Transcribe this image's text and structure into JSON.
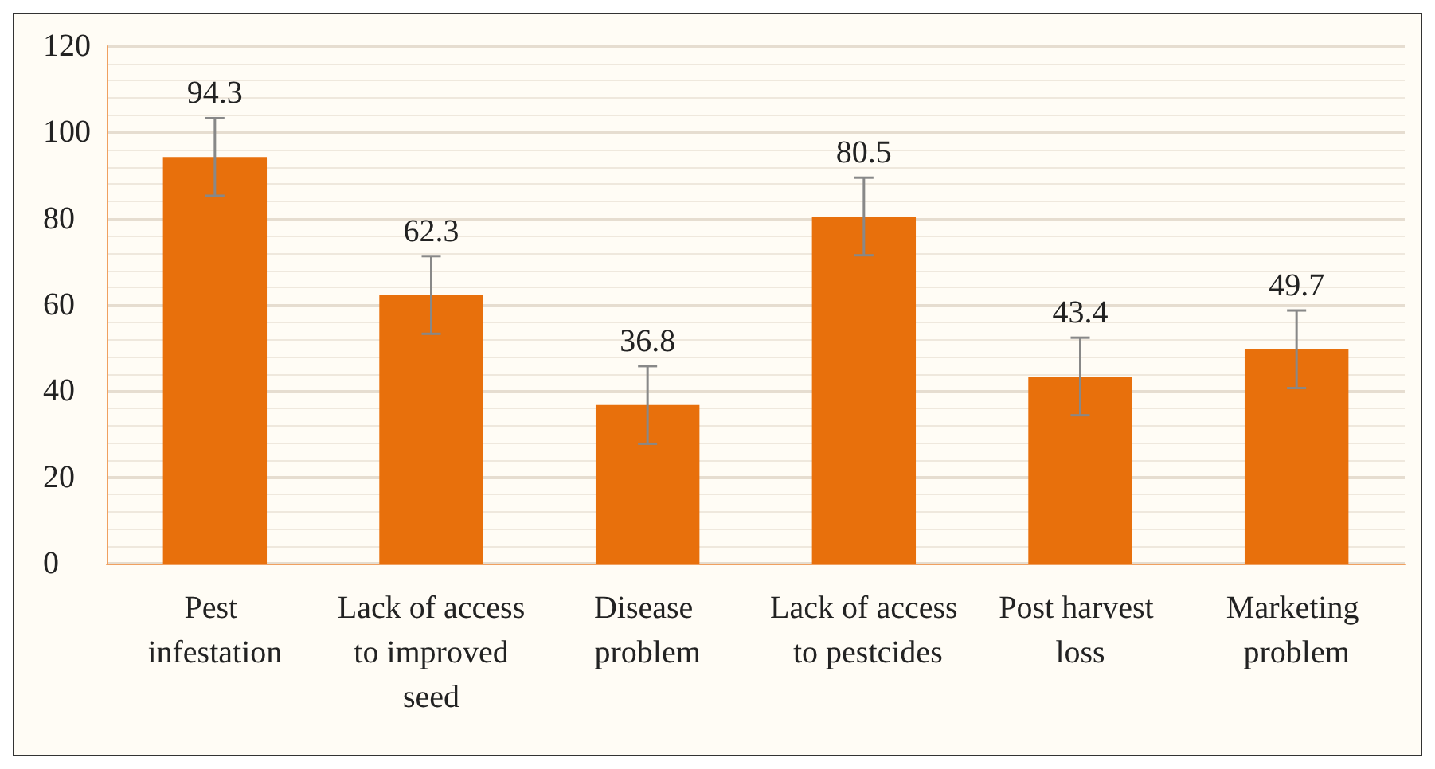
{
  "chart_data": {
    "type": "bar",
    "categories": [
      "Pest infestation",
      "Lack of access to improved seed",
      "Disease problem",
      "Lack of access to pestcides",
      "Post harvest loss",
      "Marketing problem"
    ],
    "values": [
      94.3,
      62.3,
      36.8,
      80.5,
      43.4,
      49.7
    ],
    "errors": [
      9,
      9,
      9,
      9,
      9,
      9
    ],
    "color": "#e8700c",
    "data_labels": true,
    "grid": true,
    "ylim": [
      0,
      120
    ],
    "yticks": [
      0,
      20,
      40,
      60,
      80,
      100,
      120
    ]
  }
}
